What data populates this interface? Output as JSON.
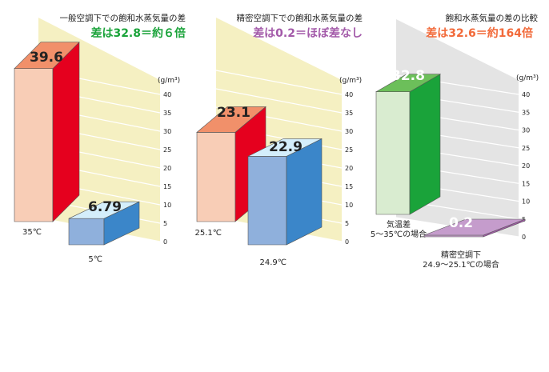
{
  "chart_data": [
    {
      "type": "bar",
      "title": "一般空調下での飽和水蒸気量の差",
      "subtitle": "差は32.8＝約６倍",
      "subtitle_color": "#1aa33a",
      "unit": "(g/m³)",
      "ylim": [
        0,
        40
      ],
      "ticks": [
        "0",
        "5",
        "10",
        "15",
        "20",
        "25",
        "30",
        "35",
        "40"
      ],
      "grid": true,
      "categories": [
        "35℃",
        "5℃"
      ],
      "values": [
        39.6,
        6.79
      ],
      "value_labels": [
        "39.6",
        "6.79"
      ],
      "colors": {
        "bar1_front": "#f8cdb6",
        "bar1_side": "#e5001e",
        "bar1_top": "#f1906a",
        "bar2_front": "#8fb0dc",
        "bar2_side": "#3b86c9",
        "bar2_top": "#d4eefb"
      }
    },
    {
      "type": "bar",
      "title": "精密空調下での飽和水蒸気量の差",
      "subtitle": "差は0.2＝ほぼ差なし",
      "subtitle_color": "#a35aa9",
      "unit": "(g/m³)",
      "ylim": [
        0,
        40
      ],
      "ticks": [
        "0",
        "5",
        "10",
        "15",
        "20",
        "25",
        "30",
        "35",
        "40"
      ],
      "grid": true,
      "categories": [
        "25.1℃",
        "24.9℃"
      ],
      "values": [
        23.1,
        22.9
      ],
      "value_labels": [
        "23.1",
        "22.9"
      ],
      "colors": {
        "bar1_front": "#f8cdb6",
        "bar1_side": "#e5001e",
        "bar1_top": "#f1906a",
        "bar2_front": "#8fb0dc",
        "bar2_side": "#3b86c9",
        "bar2_top": "#d4eefb"
      }
    },
    {
      "type": "bar",
      "title": "飽和水蒸気量の差の比較",
      "subtitle": "差は32.6＝約164倍",
      "subtitle_color": "#f26a3a",
      "unit": "(g/m³)",
      "ylim": [
        0,
        40
      ],
      "ticks": [
        "0",
        "5",
        "10",
        "15",
        "20",
        "25",
        "30",
        "35",
        "40"
      ],
      "grid": true,
      "categories": [
        "気温差\n5〜35℃の場合",
        "精密空調下\n24.9〜25.1℃の場合"
      ],
      "values": [
        32.8,
        0.2
      ],
      "value_labels": [
        "32.8",
        "0.2"
      ],
      "colors": {
        "bar1_front": "#d9ecd0",
        "bar1_side": "#1aa33a",
        "bar1_top": "#6cbf5a",
        "bar2_front": "#c9a3cf",
        "bar2_side": "#a35aa9",
        "bar2_top": "#c59ccc"
      }
    }
  ]
}
